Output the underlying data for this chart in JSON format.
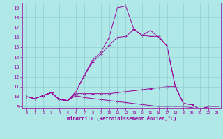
{
  "xlabel": "Windchill (Refroidissement éolien,°C)",
  "background_color": "#b0e8e8",
  "line_color": "#990099",
  "grid_color": "#aadddd",
  "xlim": [
    -0.5,
    23.5
  ],
  "ylim": [
    8.8,
    19.5
  ],
  "xticks": [
    0,
    1,
    2,
    3,
    4,
    5,
    6,
    7,
    8,
    9,
    10,
    11,
    12,
    13,
    14,
    15,
    16,
    17,
    18,
    19,
    20,
    21,
    22,
    23
  ],
  "yticks": [
    9,
    10,
    11,
    12,
    13,
    14,
    15,
    16,
    17,
    18,
    19
  ],
  "series": [
    [
      10.0,
      9.8,
      10.1,
      10.4,
      9.7,
      9.6,
      10.5,
      12.2,
      13.7,
      14.5,
      16.0,
      19.0,
      19.2,
      16.8,
      16.2,
      16.7,
      16.0,
      15.1,
      11.0,
      9.3,
      9.2,
      8.7,
      9.0,
      9.0
    ],
    [
      10.0,
      9.8,
      10.1,
      10.4,
      9.7,
      9.6,
      10.5,
      12.1,
      13.5,
      14.3,
      15.2,
      16.0,
      16.1,
      16.8,
      16.2,
      16.1,
      16.1,
      15.1,
      11.0,
      9.3,
      9.2,
      8.7,
      9.0,
      9.0
    ],
    [
      10.0,
      9.8,
      10.1,
      10.4,
      9.7,
      9.6,
      10.3,
      10.3,
      10.3,
      10.3,
      10.3,
      10.4,
      10.5,
      10.6,
      10.7,
      10.8,
      10.9,
      11.0,
      11.0,
      9.3,
      9.2,
      8.7,
      9.0,
      9.0
    ],
    [
      10.0,
      9.8,
      10.1,
      10.4,
      9.7,
      9.6,
      10.1,
      9.9,
      9.8,
      9.7,
      9.6,
      9.5,
      9.4,
      9.3,
      9.2,
      9.1,
      9.0,
      9.0,
      9.0,
      9.0,
      8.9,
      8.7,
      9.0,
      9.0
    ]
  ]
}
